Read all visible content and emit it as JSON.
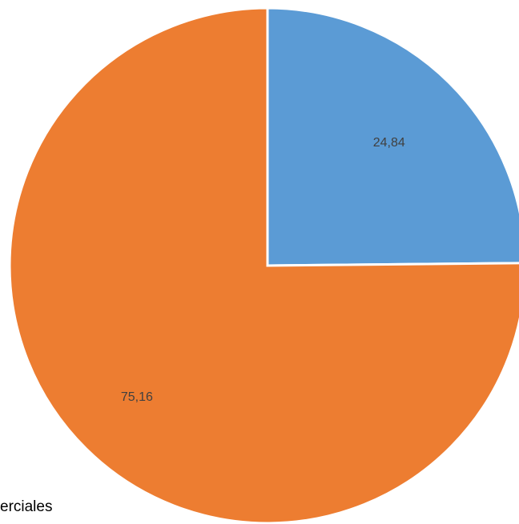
{
  "chart_data": {
    "type": "pie",
    "categories": [
      "",
      ""
    ],
    "values": [
      24.84,
      75.16
    ],
    "value_labels": [
      "24,84",
      "75,16"
    ],
    "colors": [
      "#5B9BD5",
      "#ED7D31"
    ],
    "start_angle": "12 o'clock",
    "direction": "clockwise",
    "legend_text_fragment": "erciales"
  }
}
